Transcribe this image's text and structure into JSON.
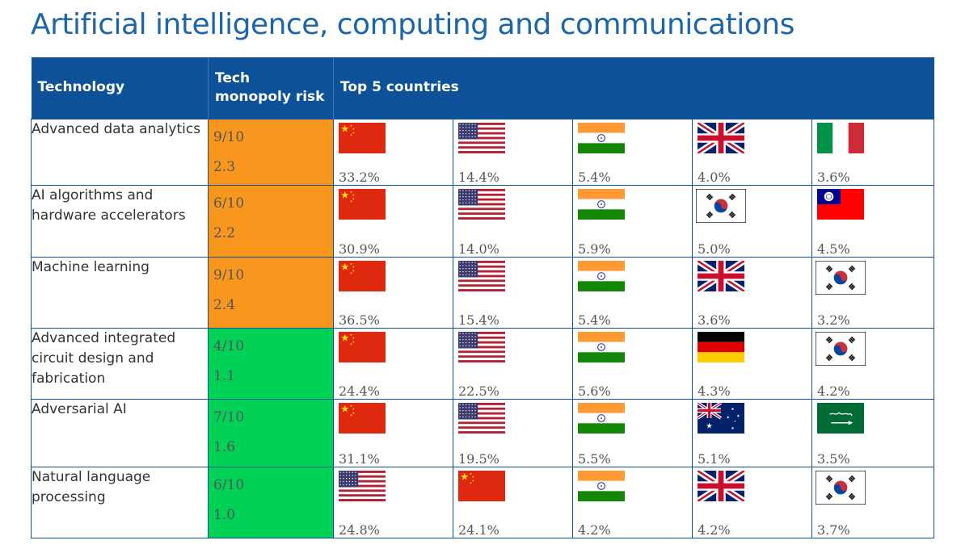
{
  "title": "Artificial intelligence, computing and communications",
  "colors": {
    "header_bg": "#0d5198",
    "title": "#1b65a8",
    "risk_high": "#f8961e",
    "risk_low": "#00d157"
  },
  "headers": {
    "technology": "Technology",
    "risk": "Tech monopoly risk",
    "countries": "Top 5 countries"
  },
  "rows": [
    {
      "technology": "Advanced data analytics",
      "risk_score": "9/10",
      "risk_value": "2.3",
      "risk_level": "high",
      "countries": [
        {
          "flag": "china-flag",
          "share": "33.2%"
        },
        {
          "flag": "usa-flag",
          "share": "14.4%"
        },
        {
          "flag": "india-flag",
          "share": "5.4%"
        },
        {
          "flag": "uk-flag",
          "share": "4.0%"
        },
        {
          "flag": "italy-flag",
          "share": "3.6%"
        }
      ]
    },
    {
      "technology": "AI algorithms and hardware accelerators",
      "risk_score": "6/10",
      "risk_value": "2.2",
      "risk_level": "high",
      "countries": [
        {
          "flag": "china-flag",
          "share": "30.9%"
        },
        {
          "flag": "usa-flag",
          "share": "14.0%"
        },
        {
          "flag": "india-flag",
          "share": "5.9%"
        },
        {
          "flag": "south-korea-flag",
          "share": "5.0%"
        },
        {
          "flag": "taiwan-flag",
          "share": "4.5%"
        }
      ]
    },
    {
      "technology": "Machine learning",
      "risk_score": "9/10",
      "risk_value": "2.4",
      "risk_level": "high",
      "countries": [
        {
          "flag": "china-flag",
          "share": "36.5%"
        },
        {
          "flag": "usa-flag",
          "share": "15.4%"
        },
        {
          "flag": "india-flag",
          "share": "5.4%"
        },
        {
          "flag": "uk-flag",
          "share": "3.6%"
        },
        {
          "flag": "south-korea-flag",
          "share": "3.2%"
        }
      ]
    },
    {
      "technology": "Advanced integrated circuit design and fabrication",
      "risk_score": "4/10",
      "risk_value": "1.1",
      "risk_level": "low",
      "countries": [
        {
          "flag": "china-flag",
          "share": "24.4%"
        },
        {
          "flag": "usa-flag",
          "share": "22.5%"
        },
        {
          "flag": "india-flag",
          "share": "5.6%"
        },
        {
          "flag": "germany-flag",
          "share": "4.3%"
        },
        {
          "flag": "south-korea-flag",
          "share": "4.2%"
        }
      ]
    },
    {
      "technology": "Adversarial AI",
      "risk_score": "7/10",
      "risk_value": "1.6",
      "risk_level": "low",
      "countries": [
        {
          "flag": "china-flag",
          "share": "31.1%"
        },
        {
          "flag": "usa-flag",
          "share": "19.5%"
        },
        {
          "flag": "india-flag",
          "share": "5.5%"
        },
        {
          "flag": "australia-flag",
          "share": "5.1%"
        },
        {
          "flag": "saudi-arabia-flag",
          "share": "3.5%"
        }
      ]
    },
    {
      "technology": "Natural language processing",
      "risk_score": "6/10",
      "risk_value": "1.0",
      "risk_level": "low",
      "countries": [
        {
          "flag": "usa-flag",
          "share": "24.8%"
        },
        {
          "flag": "china-flag",
          "share": "24.1%"
        },
        {
          "flag": "india-flag",
          "share": "4.2%"
        },
        {
          "flag": "uk-flag",
          "share": "4.2%"
        },
        {
          "flag": "south-korea-flag",
          "share": "3.7%"
        }
      ]
    }
  ]
}
